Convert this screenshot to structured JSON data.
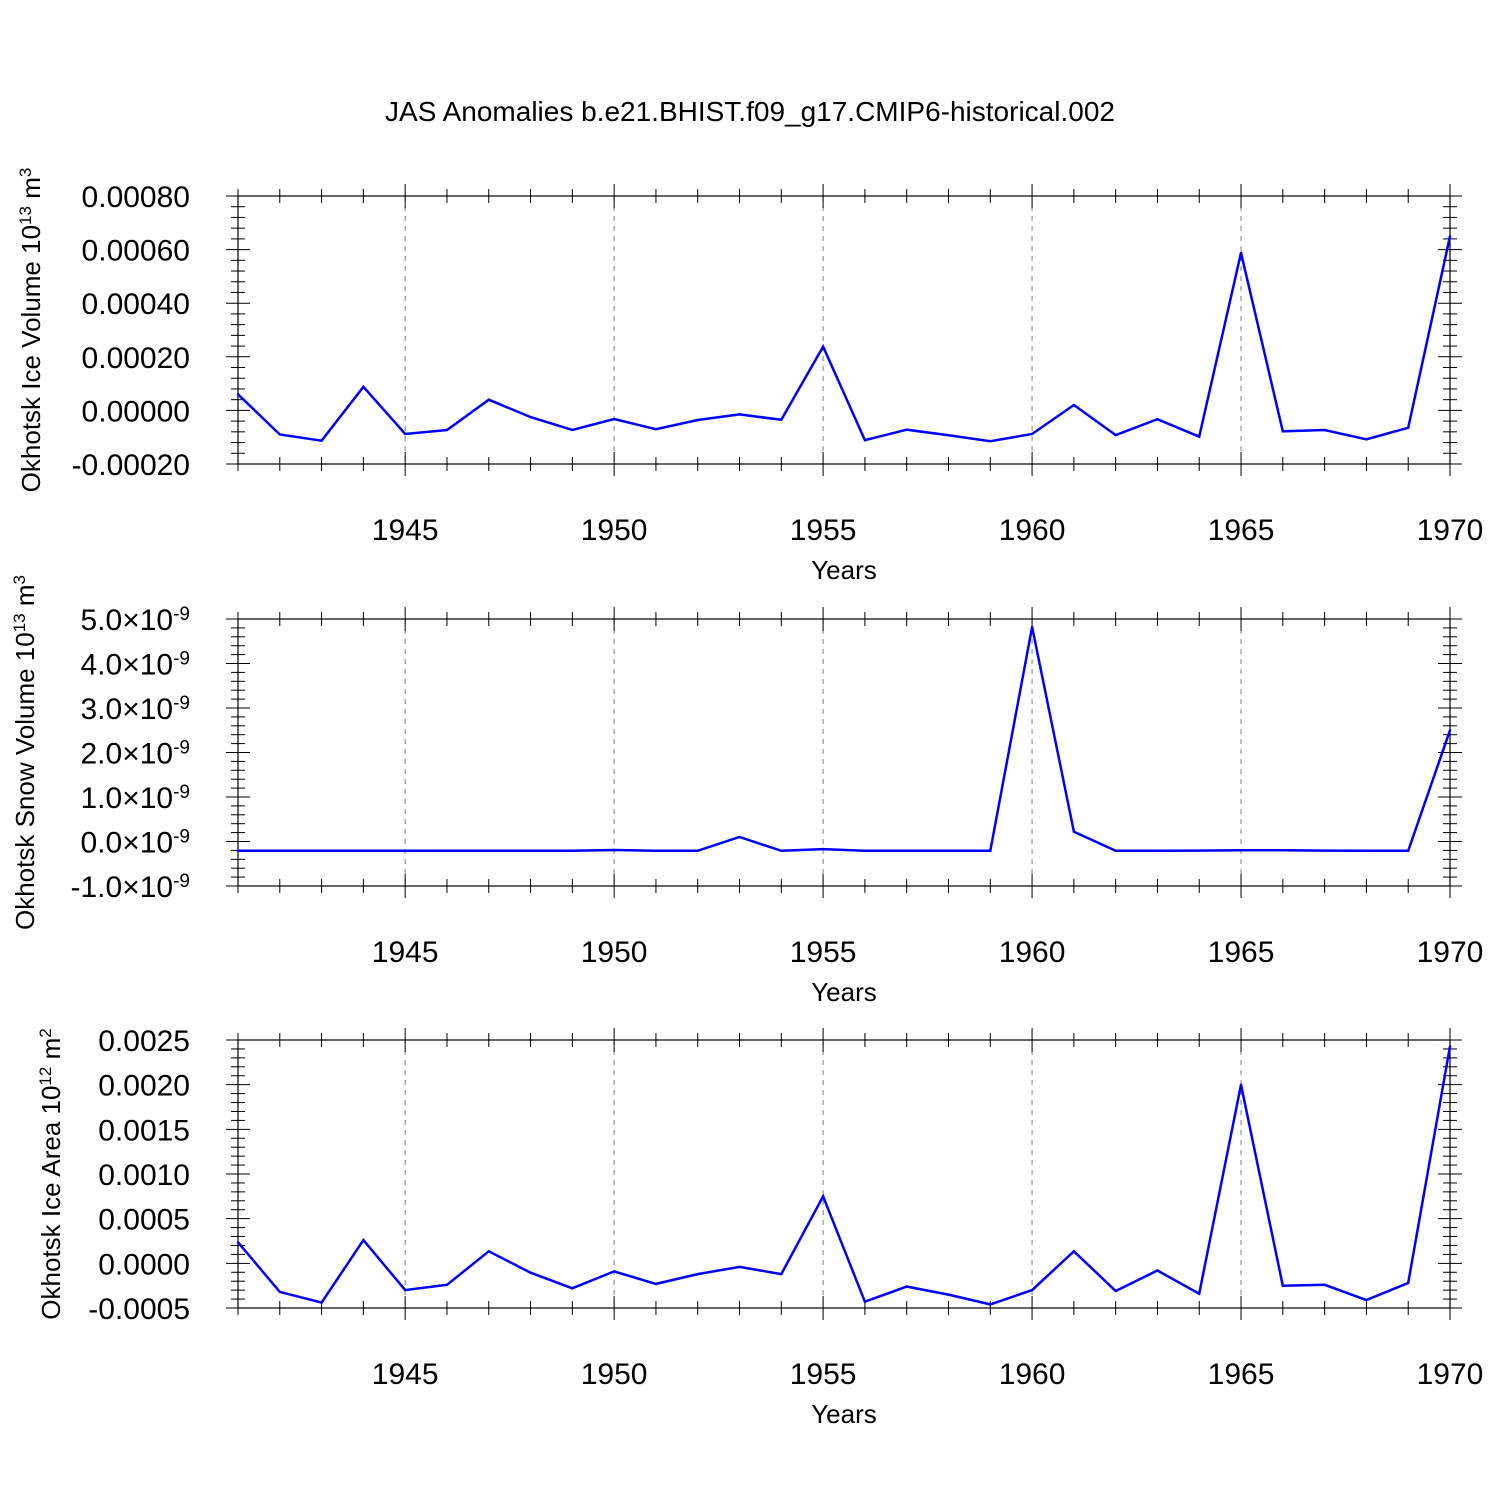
{
  "title": "JAS Anomalies b.e21.BHIST.f09_g17.CMIP6-historical.002",
  "colors": {
    "line": "#0000ff",
    "axis": "#000000",
    "grid": "#808080",
    "background": "#ffffff"
  },
  "chart_data": [
    {
      "type": "line",
      "name": "ice-volume",
      "ylabel": "Okhotsk Ice Volume 10¹³ m³",
      "ylabel_parts": {
        "main": "Okhotsk Ice Volume 10",
        "exp": "13",
        "unit": " m",
        "unit_exp": "3"
      },
      "xlabel": "Years",
      "xlim": [
        1941,
        1970
      ],
      "ylim": [
        -0.0002,
        0.0008
      ],
      "xticks": [
        1945,
        1950,
        1955,
        1960,
        1965,
        1970
      ],
      "xtick_labels": [
        "1945",
        "1950",
        "1955",
        "1960",
        "1965",
        "1970"
      ],
      "yticks": [
        -0.0002,
        0,
        0.0002,
        0.0004,
        0.0006,
        0.0008
      ],
      "ytick_labels": [
        {
          "mant": "-0.00020"
        },
        {
          "mant": "0.00000"
        },
        {
          "mant": "0.00020"
        },
        {
          "mant": "0.00040"
        },
        {
          "mant": "0.00060"
        },
        {
          "mant": "0.00080"
        }
      ],
      "grid": "vertical dashed at major x ticks",
      "x": [
        1941,
        1942,
        1943,
        1944,
        1945,
        1946,
        1947,
        1948,
        1949,
        1950,
        1951,
        1952,
        1953,
        1954,
        1955,
        1956,
        1957,
        1958,
        1959,
        1960,
        1961,
        1962,
        1963,
        1964,
        1965,
        1966,
        1967,
        1968,
        1969,
        1970
      ],
      "values": [
        6e-05,
        -9e-05,
        -0.000113,
        8.8e-05,
        -8.8e-05,
        -7.3e-05,
        4e-05,
        -2.5e-05,
        -7.3e-05,
        -3.2e-05,
        -7e-05,
        -3.6e-05,
        -1.5e-05,
        -3.5e-05,
        0.000238,
        -0.000111,
        -7.2e-05,
        -9.3e-05,
        -0.000115,
        -8.8e-05,
        2e-05,
        -9.2e-05,
        -3.3e-05,
        -9.8e-05,
        0.000588,
        -7.8e-05,
        -7.3e-05,
        -0.000108,
        -6.5e-05,
        0.00065
      ]
    },
    {
      "type": "line",
      "name": "snow-volume",
      "ylabel": "Okhotsk Snow Volume 10¹³ m³",
      "ylabel_parts": {
        "main": "Okhotsk Snow Volume 10",
        "exp": "13",
        "unit": " m",
        "unit_exp": "3"
      },
      "xlabel": "Years",
      "xlim": [
        1941,
        1970
      ],
      "ylim": [
        -1e-09,
        5e-09
      ],
      "xticks": [
        1945,
        1950,
        1955,
        1960,
        1965,
        1970
      ],
      "xtick_labels": [
        "1945",
        "1950",
        "1955",
        "1960",
        "1965",
        "1970"
      ],
      "yticks": [
        -1e-09,
        0,
        1e-09,
        2e-09,
        3e-09,
        4e-09,
        5e-09
      ],
      "ytick_labels": [
        {
          "mant": "-1.0",
          "times": "×",
          "base": "10",
          "exp": "-9"
        },
        {
          "mant": "0.0",
          "times": "×",
          "base": "10",
          "exp": "-9"
        },
        {
          "mant": "1.0",
          "times": "×",
          "base": "10",
          "exp": "-9"
        },
        {
          "mant": "2.0",
          "times": "×",
          "base": "10",
          "exp": "-9"
        },
        {
          "mant": "3.0",
          "times": "×",
          "base": "10",
          "exp": "-9"
        },
        {
          "mant": "4.0",
          "times": "×",
          "base": "10",
          "exp": "-9"
        },
        {
          "mant": "5.0",
          "times": "×",
          "base": "10",
          "exp": "-9"
        }
      ],
      "grid": "vertical dashed at major x ticks",
      "x": [
        1941,
        1942,
        1943,
        1944,
        1945,
        1946,
        1947,
        1948,
        1949,
        1950,
        1951,
        1952,
        1953,
        1954,
        1955,
        1956,
        1957,
        1958,
        1959,
        1960,
        1961,
        1962,
        1963,
        1964,
        1965,
        1966,
        1967,
        1968,
        1969,
        1970
      ],
      "values": [
        -2.1e-10,
        -2.1e-10,
        -2.1e-10,
        -2.1e-10,
        -2.1e-10,
        -2.1e-10,
        -2.1e-10,
        -2.1e-10,
        -2.1e-10,
        -1.9e-10,
        -2.1e-10,
        -2.1e-10,
        1e-10,
        -2.1e-10,
        -1.7e-10,
        -2.1e-10,
        -2.1e-10,
        -2.1e-10,
        -2.1e-10,
        4.82e-09,
        2.2e-10,
        -2.1e-10,
        -2.1e-10,
        -2.05e-10,
        -1.95e-10,
        -1.95e-10,
        -2.05e-10,
        -2.1e-10,
        -2.1e-10,
        2.5e-09
      ]
    },
    {
      "type": "line",
      "name": "ice-area",
      "ylabel": "Okhotsk Ice Area 10¹² m²",
      "ylabel_parts": {
        "main": "Okhotsk Ice Area 10",
        "exp": "12",
        "unit": " m",
        "unit_exp": "2"
      },
      "xlabel": "Years",
      "xlim": [
        1941,
        1970
      ],
      "ylim": [
        -0.0005,
        0.0025
      ],
      "xticks": [
        1945,
        1950,
        1955,
        1960,
        1965,
        1970
      ],
      "xtick_labels": [
        "1945",
        "1950",
        "1955",
        "1960",
        "1965",
        "1970"
      ],
      "yticks": [
        -0.0005,
        0,
        0.0005,
        0.001,
        0.0015,
        0.002,
        0.0025
      ],
      "ytick_labels": [
        {
          "mant": "-0.0005"
        },
        {
          "mant": "0.0000"
        },
        {
          "mant": "0.0005"
        },
        {
          "mant": "0.0010"
        },
        {
          "mant": "0.0015"
        },
        {
          "mant": "0.0020"
        },
        {
          "mant": "0.0025"
        }
      ],
      "grid": "vertical dashed at major x ticks",
      "x": [
        1941,
        1942,
        1943,
        1944,
        1945,
        1946,
        1947,
        1948,
        1949,
        1950,
        1951,
        1952,
        1953,
        1954,
        1955,
        1956,
        1957,
        1958,
        1959,
        1960,
        1961,
        1962,
        1963,
        1964,
        1965,
        1966,
        1967,
        1968,
        1969,
        1970
      ],
      "values": [
        0.000235,
        -0.00032,
        -0.00044,
        0.00026,
        -0.0003,
        -0.00024,
        0.000135,
        -0.000105,
        -0.00028,
        -9e-05,
        -0.00023,
        -0.00012,
        -4e-05,
        -0.00012,
        0.00075,
        -0.00043,
        -0.00026,
        -0.00035,
        -0.00046,
        -0.0003,
        0.000135,
        -0.00031,
        -8e-05,
        -0.00034,
        0.002,
        -0.00025,
        -0.00024,
        -0.00041,
        -0.00022,
        0.00243
      ]
    }
  ]
}
